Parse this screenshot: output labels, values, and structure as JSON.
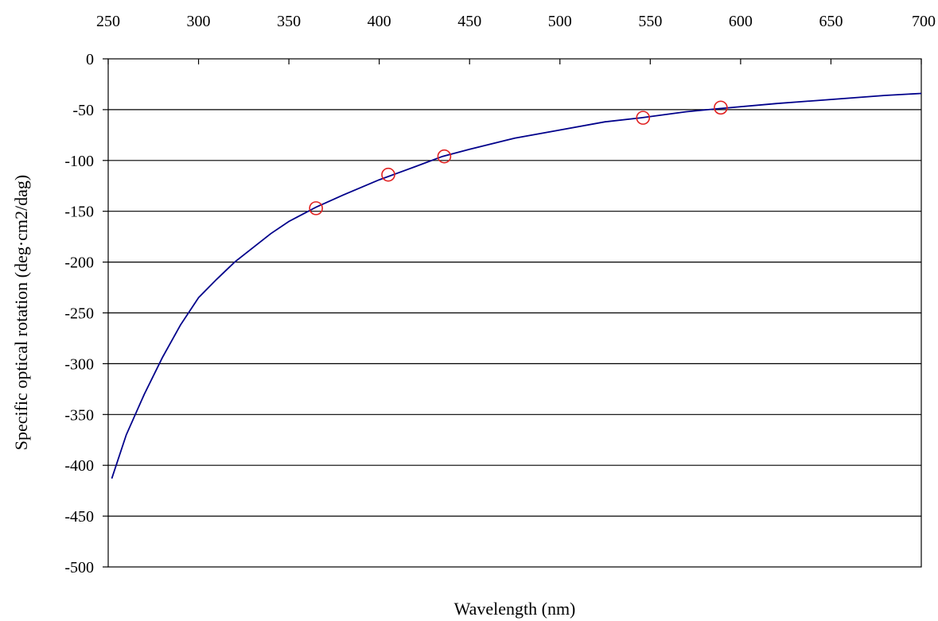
{
  "chart_data": {
    "type": "scatter",
    "title": "",
    "xlabel": "Wavelength (nm)",
    "ylabel": "Specific optical rotation (deg·cm2/dag)",
    "x_axis_position": "top",
    "xlim": [
      250,
      700
    ],
    "ylim": [
      -500,
      0
    ],
    "x_ticks": [
      "250",
      "300",
      "350",
      "400",
      "450",
      "500",
      "550",
      "600",
      "650",
      "700"
    ],
    "y_ticks": [
      "0",
      "-50",
      "-100",
      "-150",
      "-200",
      "-250",
      "-300",
      "-350",
      "-400",
      "-450",
      "-500"
    ],
    "grid": "horizontal",
    "series": [
      {
        "kind": "fitted-curve",
        "color": "#00008b",
        "x": [
          252,
          260,
          270,
          280,
          290,
          300,
          310,
          320,
          330,
          340,
          350,
          365,
          380,
          400,
          420,
          435,
          450,
          475,
          500,
          525,
          545,
          570,
          588,
          620,
          650,
          680,
          700
        ],
        "y": [
          -413,
          -370,
          -330,
          -294,
          -262,
          -235,
          -217,
          -200,
          -186,
          -172,
          -160,
          -146,
          -134,
          -119,
          -106,
          -96,
          -89,
          -78,
          -70,
          -62,
          -58,
          -52,
          -49,
          -44,
          -40,
          -36,
          -34
        ]
      },
      {
        "kind": "measured-points",
        "color": "#e02020",
        "marker": "open-circle",
        "x": [
          365,
          405,
          436,
          546,
          589
        ],
        "y": [
          -147,
          -114,
          -96,
          -58,
          -48
        ]
      }
    ]
  }
}
